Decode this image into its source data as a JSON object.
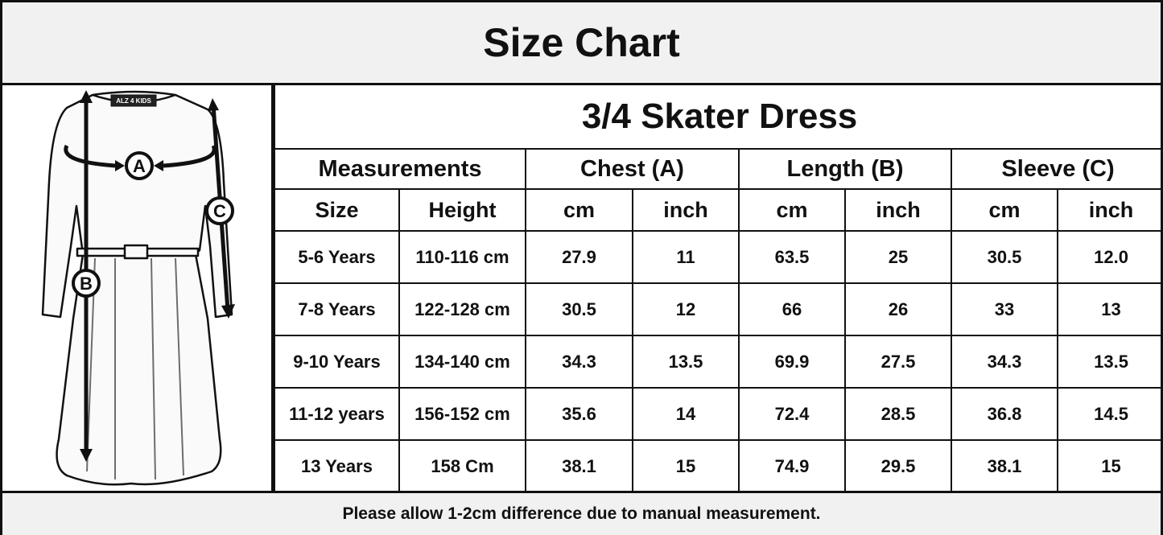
{
  "title": "Size Chart",
  "product": "3/4 Skater Dress",
  "illustration": {
    "brand_label": "ALZ 4 KIDS",
    "markers": [
      "A",
      "B",
      "C"
    ]
  },
  "groups": [
    "Measurements",
    "Chest (A)",
    "Length (B)",
    "Sleeve (C)"
  ],
  "columns": [
    "Size",
    "Height",
    "cm",
    "inch",
    "cm",
    "inch",
    "cm",
    "inch"
  ],
  "rows": [
    [
      "5-6 Years",
      "110-116 cm",
      "27.9",
      "11",
      "63.5",
      "25",
      "30.5",
      "12.0"
    ],
    [
      "7-8 Years",
      "122-128 cm",
      "30.5",
      "12",
      "66",
      "26",
      "33",
      "13"
    ],
    [
      "9-10 Years",
      "134-140 cm",
      "34.3",
      "13.5",
      "69.9",
      "27.5",
      "34.3",
      "13.5"
    ],
    [
      "11-12 years",
      "156-152 cm",
      "35.6",
      "14",
      "72.4",
      "28.5",
      "36.8",
      "14.5"
    ],
    [
      "13 Years",
      "158 Cm",
      "38.1",
      "15",
      "74.9",
      "29.5",
      "38.1",
      "15"
    ]
  ],
  "footer": "Please allow 1-2cm difference due to manual measurement."
}
